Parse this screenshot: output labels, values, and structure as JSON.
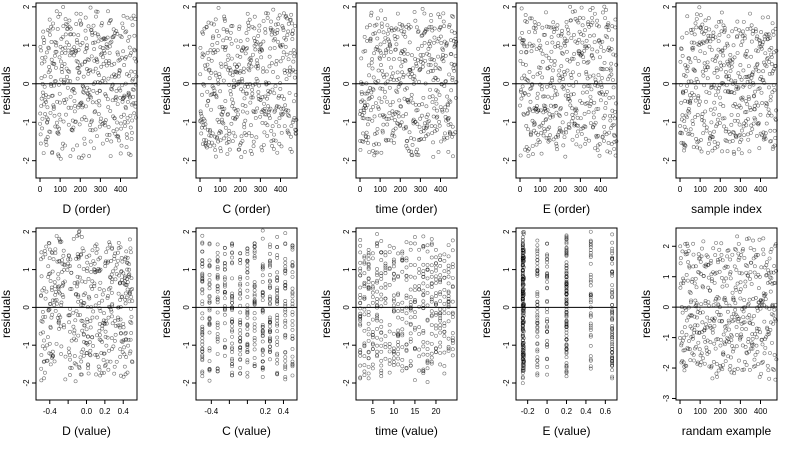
{
  "chart_data": [
    {
      "type": "scatter",
      "xlabel": "D (order)",
      "ylabel": "residuals",
      "xticks": [
        0,
        100,
        200,
        300,
        400
      ],
      "yticks": [
        -2,
        -1,
        0,
        1,
        2
      ],
      "xlim": [
        -20,
        482
      ],
      "ylim": [
        -2.45,
        2.1
      ],
      "ref_line": 0,
      "n": 480,
      "x_kind": "order",
      "seed": 11
    },
    {
      "type": "scatter",
      "xlabel": "C (order)",
      "ylabel": "residuals",
      "xticks": [
        0,
        100,
        200,
        300,
        400
      ],
      "yticks": [
        -2,
        -1,
        0,
        1,
        2
      ],
      "xlim": [
        -20,
        482
      ],
      "ylim": [
        -2.45,
        2.1
      ],
      "ref_line": 0,
      "n": 480,
      "x_kind": "order",
      "seed": 23
    },
    {
      "type": "scatter",
      "xlabel": "time (order)",
      "ylabel": "residuals",
      "xticks": [
        0,
        100,
        200,
        300,
        400
      ],
      "yticks": [
        -2,
        -1,
        0,
        1,
        2
      ],
      "xlim": [
        -20,
        482
      ],
      "ylim": [
        -2.45,
        2.1
      ],
      "ref_line": 0,
      "n": 480,
      "x_kind": "order",
      "seed": 37
    },
    {
      "type": "scatter",
      "xlabel": "E (order)",
      "ylabel": "residuals",
      "xticks": [
        0,
        100,
        200,
        300,
        400
      ],
      "yticks": [
        -2,
        -1,
        0,
        1,
        2
      ],
      "xlim": [
        -20,
        482
      ],
      "ylim": [
        -2.45,
        2.1
      ],
      "ref_line": 0,
      "n": 480,
      "x_kind": "order",
      "seed": 41
    },
    {
      "type": "scatter",
      "xlabel": "sample index",
      "ylabel": "residuals",
      "xticks": [
        0,
        100,
        200,
        300,
        400
      ],
      "yticks": [
        -2,
        -1,
        0,
        1,
        2
      ],
      "xlim": [
        -20,
        482
      ],
      "ylim": [
        -2.45,
        2.1
      ],
      "ref_line": 0,
      "n": 480,
      "x_kind": "order",
      "seed": 53
    },
    {
      "type": "scatter",
      "xlabel": "D (value)",
      "ylabel": "residuals",
      "xticks": [
        -0.4,
        -0.2,
        0.0,
        0.2,
        0.4
      ],
      "xtick_labels": [
        "-0.4",
        "",
        "0.0",
        "0.2",
        "0.4"
      ],
      "yticks": [
        -2,
        -1,
        0,
        1,
        2
      ],
      "xlim": [
        -0.55,
        0.55
      ],
      "ylim": [
        -2.45,
        2.1
      ],
      "ref_line": 0,
      "n": 480,
      "x_kind": "uniform",
      "x_range": [
        -0.5,
        0.5
      ],
      "seed": 61
    },
    {
      "type": "scatter",
      "xlabel": "C (value)",
      "ylabel": "residuals",
      "xticks": [
        -0.4,
        -0.2,
        0.0,
        0.2,
        0.4
      ],
      "xtick_labels": [
        "-0.4",
        "",
        "",
        "0.2",
        "0.4"
      ],
      "yticks": [
        -2,
        -1,
        0,
        1,
        2
      ],
      "xlim": [
        -0.57,
        0.55
      ],
      "ylim": [
        -2.45,
        2.1
      ],
      "ref_line": 0,
      "n": 480,
      "x_kind": "discrete",
      "x_levels": [
        -0.5,
        -0.42,
        -0.33,
        -0.25,
        -0.17,
        -0.08,
        0.0,
        0.08,
        0.17,
        0.25,
        0.33,
        0.42,
        0.5
      ],
      "seed": 73
    },
    {
      "type": "scatter",
      "xlabel": "time (value)",
      "ylabel": "residuals",
      "xticks": [
        5,
        10,
        15,
        20
      ],
      "yticks": [
        -2,
        -1,
        0,
        1,
        2
      ],
      "xlim": [
        1,
        25
      ],
      "ylim": [
        -2.45,
        2.1
      ],
      "ref_line": 0,
      "n": 480,
      "x_kind": "discrete",
      "x_levels": [
        2,
        3,
        4,
        5,
        6,
        7,
        8,
        9,
        10,
        11,
        12,
        13,
        14,
        15,
        16,
        17,
        18,
        19,
        20,
        21,
        22,
        23,
        24
      ],
      "seed": 83
    },
    {
      "type": "scatter",
      "xlabel": "E (value)",
      "ylabel": "residuals",
      "xticks": [
        -0.2,
        0.0,
        0.2,
        0.4,
        0.6
      ],
      "yticks": [
        -2,
        -1,
        0,
        1,
        2
      ],
      "xlim": [
        -0.32,
        0.72
      ],
      "ylim": [
        -2.45,
        2.1
      ],
      "ref_line": 0,
      "n": 480,
      "x_kind": "discrete",
      "x_levels": [
        -0.25,
        -0.25,
        -0.25,
        -0.24,
        -0.1,
        0.0,
        0.2,
        0.2,
        0.45,
        0.67
      ],
      "seed": 97
    },
    {
      "type": "scatter",
      "xlabel": "randam example",
      "ylabel": "residuals",
      "xticks": [
        0,
        100,
        200,
        300,
        400
      ],
      "yticks": [
        -3,
        -2,
        -1,
        0,
        1,
        2
      ],
      "xlim": [
        -20,
        482
      ],
      "ylim": [
        -3.05,
        2.6
      ],
      "ref_line": 0,
      "n": 480,
      "x_kind": "order",
      "seed": 101
    }
  ]
}
